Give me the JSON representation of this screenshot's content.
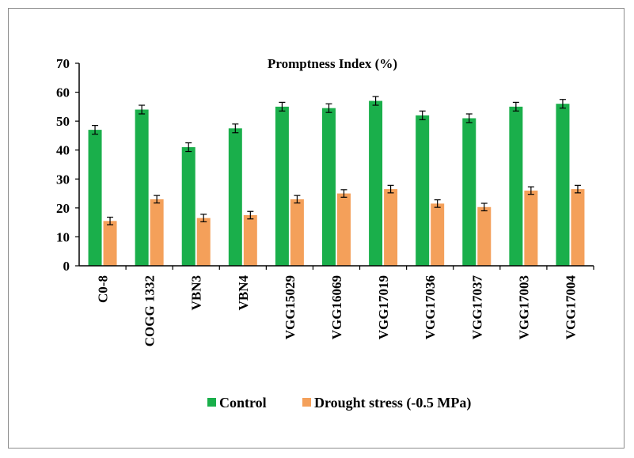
{
  "chart_data": {
    "type": "bar",
    "title": "Promptness Index (%)",
    "xlabel": "",
    "ylabel": "",
    "ylim": [
      0,
      70
    ],
    "yticks": [
      0,
      10,
      20,
      30,
      40,
      50,
      60,
      70
    ],
    "grid": false,
    "legend_position": "bottom",
    "categories": [
      "C0-8",
      "COGG 1332",
      "VBN3",
      "VBN4",
      "VGG15029",
      "VGG16069",
      "VGG17019",
      "VGG17036",
      "VGG17037",
      "VGG17003",
      "VGG17004"
    ],
    "series": [
      {
        "name": "Control",
        "color": "#1aaf4b",
        "values": [
          47,
          54,
          41,
          47.5,
          55,
          54.5,
          57,
          52,
          51,
          55,
          56
        ],
        "errors": [
          1.5,
          1.5,
          1.5,
          1.5,
          1.5,
          1.5,
          1.5,
          1.5,
          1.5,
          1.5,
          1.5
        ]
      },
      {
        "name": "Drought stress (-0.5 MPa)",
        "color": "#f4a05a",
        "values": [
          15.5,
          23,
          16.5,
          17.5,
          23,
          25,
          26.5,
          21.5,
          20.3,
          26,
          26.5
        ],
        "errors": [
          1.3,
          1.3,
          1.3,
          1.3,
          1.3,
          1.3,
          1.3,
          1.3,
          1.3,
          1.3,
          1.3
        ]
      }
    ]
  }
}
